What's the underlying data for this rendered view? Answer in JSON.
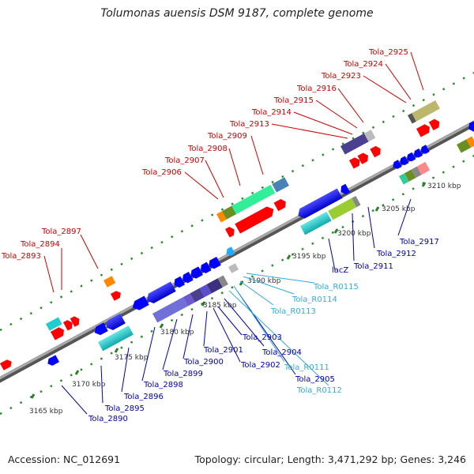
{
  "title": "Tolumonas auensis DSM 9187, complete genome",
  "footer": {
    "accession": "Accession: NC_012691",
    "info": "Topology: circular; Length: 3,471,292 bp; Genes: 3,246"
  },
  "colors": {
    "upper_label": "#cc0000",
    "lower_label": "#0000aa",
    "rna_label": "#33aadd",
    "backbone": "#888888",
    "tick": "#2e8b2e"
  },
  "ticks": [
    "3165 kbp",
    "3170 kbp",
    "3175 kbp",
    "3180 kbp",
    "3185 kbp",
    "3190 kbp",
    "3195 kbp",
    "3200 kbp",
    "3205 kbp",
    "3210 kbp"
  ],
  "upper_labels": [
    "Tola_2893",
    "Tola_2894",
    "Tola_2897",
    "Tola_2906",
    "Tola_2907",
    "Tola_2908",
    "Tola_2909",
    "Tola_2913",
    "Tola_2914",
    "Tola_2915",
    "Tola_2916",
    "Tola_2923",
    "Tola_2924",
    "Tola_2925"
  ],
  "lower_labels": [
    "Tola_2890",
    "Tola_2895",
    "Tola_2896",
    "Tola_2898",
    "Tola_2899",
    "Tola_2900",
    "Tola_2901",
    "Tola_2902",
    "Tola_2903",
    "Tola_2904",
    "Tola_2905",
    "Tola_R0111",
    "Tola_R0112",
    "Tola_R0113",
    "Tola_R0114",
    "Tola_R0115",
    "lacZ",
    "Tola_2911",
    "Tola_2912",
    "Tola_2917"
  ]
}
